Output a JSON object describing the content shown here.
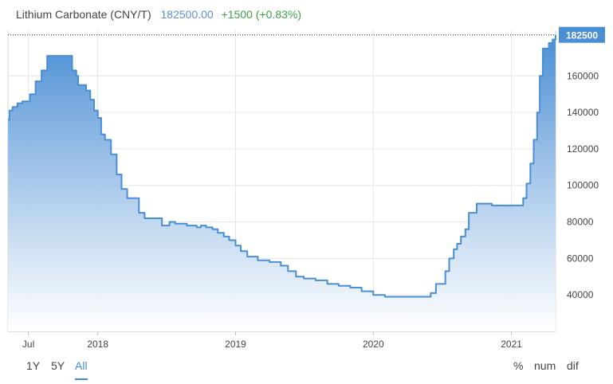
{
  "header": {
    "instrument": "Lithium Carbonate (CNY/T)",
    "price": "182500.00",
    "change": "+1500 (+0.83%)"
  },
  "range_tabs": [
    "1Y",
    "5Y",
    "All"
  ],
  "active_range": "All",
  "modes": [
    "%",
    "num",
    "dif"
  ],
  "last_price_label": "182500",
  "colors": {
    "line": "#4a8ed4",
    "fill_top": "#4a8ed4",
    "fill_bottom": "#ffffff",
    "price_text": "#5b8fd1",
    "change_text": "#3fa04a",
    "grid": "#e6e6e6",
    "badge": "#4a8ed4",
    "active_tab": "#3f8bd2"
  },
  "chart_data": {
    "type": "area",
    "title": "Lithium Carbonate (CNY/T)",
    "xlabel": "",
    "ylabel": "",
    "x_ticks": [
      "Jul",
      "2018",
      "2019",
      "2020",
      "2021"
    ],
    "y_ticks": [
      40000,
      60000,
      80000,
      100000,
      120000,
      140000,
      160000
    ],
    "ylim": [
      20000,
      185000
    ],
    "xlim": [
      "2017-05-08",
      "2021-04-28"
    ],
    "grid": true,
    "last_value": 182500,
    "series": [
      {
        "x": [
          "2017-05-08",
          "2017-05-12",
          "2017-05-20",
          "2017-06-02",
          "2017-06-15",
          "2017-07-05",
          "2017-07-20",
          "2017-08-05",
          "2017-08-20",
          "2017-09-05",
          "2017-10-25",
          "2017-11-05",
          "2017-11-10",
          "2017-11-25",
          "2017-12-01",
          "2017-12-12",
          "2017-12-22",
          "2018-01-01",
          "2018-01-10",
          "2018-01-20",
          "2018-02-05",
          "2018-02-20",
          "2018-03-05",
          "2018-03-20",
          "2018-04-20",
          "2018-05-05",
          "2018-06-20",
          "2018-07-10",
          "2018-07-25",
          "2018-08-25",
          "2018-09-20",
          "2018-10-01",
          "2018-10-15",
          "2018-11-01",
          "2018-11-15",
          "2018-12-01",
          "2018-12-15",
          "2019-01-01",
          "2019-01-15",
          "2019-02-01",
          "2019-03-01",
          "2019-04-01",
          "2019-05-01",
          "2019-05-20",
          "2019-06-10",
          "2019-07-01",
          "2019-08-01",
          "2019-09-01",
          "2019-10-01",
          "2019-11-01",
          "2019-12-01",
          "2020-01-01",
          "2020-02-01",
          "2020-03-01",
          "2020-05-01",
          "2020-06-01",
          "2020-06-15",
          "2020-07-10",
          "2020-07-20",
          "2020-08-01",
          "2020-08-10",
          "2020-08-20",
          "2020-09-01",
          "2020-09-10",
          "2020-09-20",
          "2020-10-01",
          "2020-10-20",
          "2020-11-10",
          "2020-12-01",
          "2020-12-20",
          "2021-01-10",
          "2021-01-20",
          "2021-02-01",
          "2021-02-10",
          "2021-02-20",
          "2021-03-01",
          "2021-03-10",
          "2021-03-17",
          "2021-03-25",
          "2021-04-10",
          "2021-04-20",
          "2021-04-28"
        ],
        "y": [
          136000,
          141000,
          143000,
          145000,
          146000,
          150000,
          157000,
          163000,
          171000,
          171000,
          163000,
          160000,
          155000,
          155000,
          152000,
          147000,
          141000,
          137000,
          128000,
          125000,
          117000,
          106000,
          98000,
          93000,
          85000,
          82000,
          78000,
          80000,
          79000,
          78000,
          77000,
          78000,
          77000,
          76000,
          74000,
          72000,
          70000,
          67000,
          64000,
          61000,
          59000,
          58000,
          56000,
          53000,
          50000,
          49000,
          48000,
          46000,
          45000,
          44000,
          42000,
          40000,
          39000,
          39000,
          39000,
          41000,
          46000,
          53000,
          60000,
          65000,
          68000,
          72000,
          76000,
          85000,
          85000,
          90000,
          90000,
          89000,
          89000,
          89000,
          89000,
          89000,
          93000,
          101000,
          112000,
          125000,
          140000,
          160000,
          175000,
          178000,
          180000,
          182500
        ]
      }
    ]
  }
}
